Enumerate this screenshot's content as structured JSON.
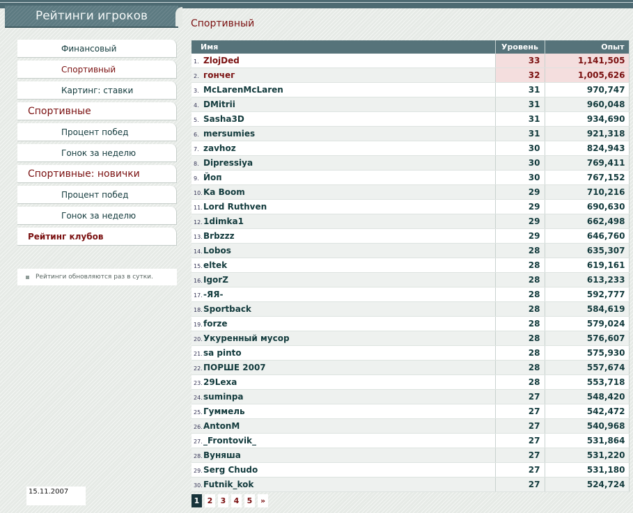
{
  "header": {
    "title": "Рейтинги игроков"
  },
  "menu": [
    {
      "label": "Финансовый",
      "kind": "sub",
      "active": false
    },
    {
      "label": "Спортивный",
      "kind": "sub",
      "active": true
    },
    {
      "label": "Картинг: ставки",
      "kind": "sub",
      "active": false
    },
    {
      "label": "Спортивные",
      "kind": "section",
      "active": false
    },
    {
      "label": "Процент побед",
      "kind": "sub",
      "active": false
    },
    {
      "label": "Гонок за неделю",
      "kind": "sub",
      "active": false
    },
    {
      "label": "Спортивные: новички",
      "kind": "section",
      "active": false
    },
    {
      "label": "Процент побед",
      "kind": "sub",
      "active": false
    },
    {
      "label": "Гонок за неделю",
      "kind": "sub",
      "active": false
    },
    {
      "label": "Рейтинг клубов",
      "kind": "club",
      "active": false
    }
  ],
  "notice": "Рейтинги обновляются раз в сутки.",
  "date": "15.11.2007",
  "main": {
    "title": "Спортивный",
    "columns": {
      "name": "Имя",
      "level": "Уровень",
      "exp": "Опыт"
    },
    "rows": [
      {
        "n": "1.",
        "name": "ZlojDed",
        "level": "33",
        "exp": "1,141,505"
      },
      {
        "n": "2.",
        "name": "гончег",
        "level": "32",
        "exp": "1,005,626"
      },
      {
        "n": "3.",
        "name": "McLarenMcLaren",
        "level": "31",
        "exp": "970,747"
      },
      {
        "n": "4.",
        "name": "DMitrii",
        "level": "31",
        "exp": "960,048"
      },
      {
        "n": "5.",
        "name": "Sasha3D",
        "level": "31",
        "exp": "934,690"
      },
      {
        "n": "6.",
        "name": "mersumies",
        "level": "31",
        "exp": "921,318"
      },
      {
        "n": "7.",
        "name": "zavhoz",
        "level": "30",
        "exp": "824,943"
      },
      {
        "n": "8.",
        "name": "Dipressiya",
        "level": "30",
        "exp": "769,411"
      },
      {
        "n": "9.",
        "name": "Йоп",
        "level": "30",
        "exp": "767,152"
      },
      {
        "n": "10.",
        "name": "Ka Boom",
        "level": "29",
        "exp": "710,216"
      },
      {
        "n": "11.",
        "name": "Lord Ruthven",
        "level": "29",
        "exp": "690,630"
      },
      {
        "n": "12.",
        "name": "1dimka1",
        "level": "29",
        "exp": "662,498"
      },
      {
        "n": "13.",
        "name": "Brbzzz",
        "level": "29",
        "exp": "646,760"
      },
      {
        "n": "14.",
        "name": "Lobos",
        "level": "28",
        "exp": "635,307"
      },
      {
        "n": "15.",
        "name": "eltek",
        "level": "28",
        "exp": "619,161"
      },
      {
        "n": "16.",
        "name": "IgorZ",
        "level": "28",
        "exp": "613,233"
      },
      {
        "n": "17.",
        "name": "-ЯЯ-",
        "level": "28",
        "exp": "592,777"
      },
      {
        "n": "18.",
        "name": "Sportback",
        "level": "28",
        "exp": "584,619"
      },
      {
        "n": "19.",
        "name": "forze",
        "level": "28",
        "exp": "579,024"
      },
      {
        "n": "20.",
        "name": "Укуренный мусор",
        "level": "28",
        "exp": "576,607"
      },
      {
        "n": "21.",
        "name": "sa pinto",
        "level": "28",
        "exp": "575,930"
      },
      {
        "n": "22.",
        "name": "ПОРШЕ 2007",
        "level": "28",
        "exp": "557,674"
      },
      {
        "n": "23.",
        "name": "29Lexa",
        "level": "28",
        "exp": "553,718"
      },
      {
        "n": "24.",
        "name": "suminpa",
        "level": "27",
        "exp": "548,420"
      },
      {
        "n": "25.",
        "name": "Гуммель",
        "level": "27",
        "exp": "542,472"
      },
      {
        "n": "26.",
        "name": "AntonM",
        "level": "27",
        "exp": "540,968"
      },
      {
        "n": "27.",
        "name": "_Frontovik_",
        "level": "27",
        "exp": "531,864"
      },
      {
        "n": "28.",
        "name": "Вуняша",
        "level": "27",
        "exp": "531,220"
      },
      {
        "n": "29.",
        "name": "Serg Chudo",
        "level": "27",
        "exp": "531,180"
      },
      {
        "n": "30.",
        "name": "Futnik_kok",
        "level": "27",
        "exp": "524,724"
      }
    ]
  },
  "pagination": {
    "pages": [
      "1",
      "2",
      "3",
      "4",
      "5"
    ],
    "current": "1",
    "next": "»"
  },
  "colors": {
    "accent": "#7a1010",
    "header_bg": "#56737a",
    "top_row_bg": "#f4dede"
  }
}
